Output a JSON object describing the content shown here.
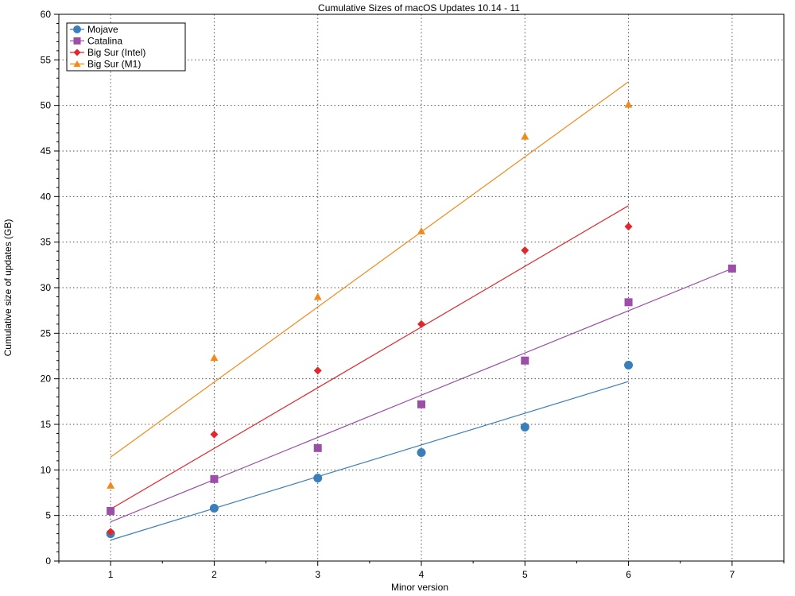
{
  "chart_data": {
    "type": "scatter",
    "title": "Cumulative Sizes of macOS Updates 10.14  - 11",
    "xlabel": "Minor version",
    "ylabel": "Cumulative size of updates (GB)",
    "xlim": [
      0.5,
      7.5
    ],
    "ylim": [
      0,
      60
    ],
    "xticks": [
      1,
      2,
      3,
      4,
      5,
      6,
      7
    ],
    "yticks": [
      0,
      5,
      10,
      15,
      20,
      25,
      30,
      35,
      40,
      45,
      50,
      55,
      60
    ],
    "grid": true,
    "legend_position": "top-left",
    "series": [
      {
        "name": "Mojave",
        "color": "#3a7fbc",
        "marker": "circle",
        "points": [
          [
            1,
            3.0
          ],
          [
            2,
            5.8
          ],
          [
            3,
            9.1
          ],
          [
            4,
            11.9
          ],
          [
            5,
            14.7
          ],
          [
            6,
            21.5
          ]
        ],
        "trend": [
          [
            1,
            2.3
          ],
          [
            6,
            19.7
          ]
        ]
      },
      {
        "name": "Catalina",
        "color": "#9b4fa6",
        "marker": "square",
        "points": [
          [
            1,
            5.5
          ],
          [
            2,
            9.0
          ],
          [
            3,
            12.4
          ],
          [
            4,
            17.2
          ],
          [
            5,
            22.0
          ],
          [
            6,
            28.4
          ],
          [
            7,
            32.1
          ]
        ],
        "trend": [
          [
            1,
            4.3
          ],
          [
            7,
            32.1
          ]
        ]
      },
      {
        "name": "Big Sur (Intel)",
        "color": "#e2262b",
        "marker": "diamond",
        "points": [
          [
            1,
            3.2
          ],
          [
            2,
            13.9
          ],
          [
            3,
            20.9
          ],
          [
            4,
            26.0
          ],
          [
            5,
            34.1
          ],
          [
            6,
            36.7
          ]
        ],
        "trend": [
          [
            1,
            5.7
          ],
          [
            6,
            39.0
          ]
        ]
      },
      {
        "name": "Big Sur (M1)",
        "color": "#f28a1a",
        "marker": "triangle",
        "points": [
          [
            1,
            8.3
          ],
          [
            2,
            22.3
          ],
          [
            3,
            29.0
          ],
          [
            4,
            36.2
          ],
          [
            5,
            46.6
          ],
          [
            6,
            50.1
          ]
        ],
        "trend": [
          [
            1,
            11.4
          ],
          [
            6,
            52.6
          ]
        ]
      }
    ]
  }
}
